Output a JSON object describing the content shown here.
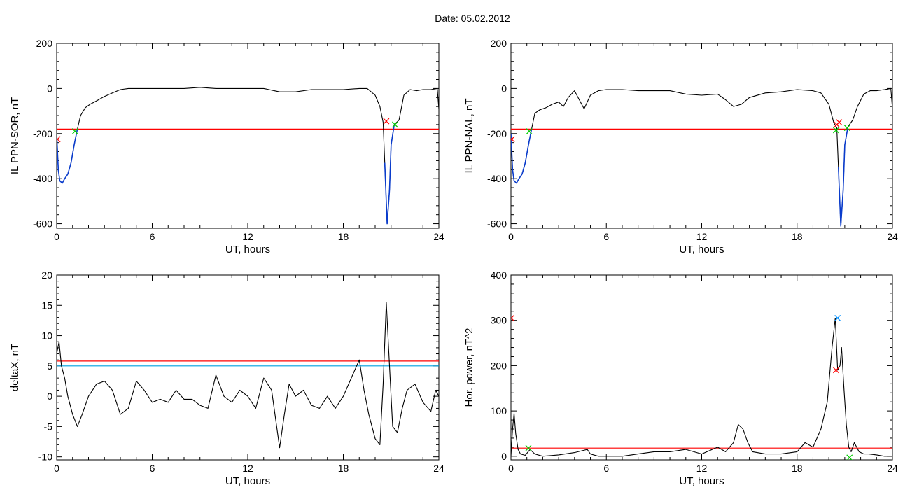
{
  "title": "Date:  05.02.2012",
  "colors": {
    "axis": "#000000",
    "trace": "#000000",
    "threshold_red": "#ff0000",
    "threshold_blue": "#00a0e0",
    "highlight": "#0a3ccc",
    "marker_red": "#ff0000",
    "marker_green": "#00cc00",
    "marker_blue": "#0090ff"
  },
  "chart_data": [
    {
      "type": "line",
      "title": "",
      "xlabel": "UT, hours",
      "ylabel": "IL PPN-SOR, nT",
      "xlim": [
        0,
        24
      ],
      "ylim": [
        -620,
        200
      ],
      "xticks": [
        0,
        6,
        12,
        18,
        24
      ],
      "yticks": [
        -600,
        -400,
        -200,
        0,
        200
      ],
      "grid": false,
      "legend": "none",
      "thresholds": [
        {
          "y": -180,
          "color": "#ff0000"
        }
      ],
      "series": [
        {
          "color": "#000000",
          "x": [
            0,
            0.1,
            0.2,
            0.35,
            0.5,
            0.7,
            0.9,
            1.1,
            1.3,
            1.5,
            1.8,
            2.1,
            2.5,
            3.0,
            3.5,
            4.0,
            4.5,
            5,
            6,
            7,
            8,
            9,
            10,
            11,
            12,
            13,
            14,
            15,
            16,
            17,
            18,
            19,
            19.5,
            20.0,
            20.3,
            20.5,
            20.6,
            20.75,
            20.9,
            21.0,
            21.2,
            21.5,
            21.8,
            22.2,
            22.6,
            23,
            23.5,
            23.9,
            24
          ],
          "y": [
            -200,
            -360,
            -410,
            -420,
            -400,
            -380,
            -330,
            -250,
            -180,
            -120,
            -85,
            -70,
            -55,
            -35,
            -20,
            -5,
            0,
            0,
            0,
            0,
            0,
            5,
            0,
            0,
            0,
            0,
            -15,
            -15,
            -5,
            -5,
            -5,
            0,
            0,
            -30,
            -80,
            -150,
            -330,
            -600,
            -450,
            -250,
            -160,
            -140,
            -30,
            -5,
            -10,
            -5,
            -5,
            0,
            -90
          ]
        },
        {
          "color": "#0a3ccc",
          "x": [
            0,
            0.1,
            0.2,
            0.35,
            0.5,
            0.7,
            0.9,
            1.1,
            1.3
          ],
          "y": [
            -200,
            -360,
            -410,
            -420,
            -400,
            -380,
            -330,
            -250,
            -180
          ]
        },
        {
          "color": "#0a3ccc",
          "x": [
            20.6,
            20.75,
            20.9,
            21.0,
            21.2
          ],
          "y": [
            -330,
            -600,
            -450,
            -250,
            -160
          ]
        }
      ],
      "markers": [
        {
          "x": 0.05,
          "y": -225,
          "color": "#ff0000"
        },
        {
          "x": 1.15,
          "y": -190,
          "color": "#00cc00"
        },
        {
          "x": 20.7,
          "y": -145,
          "color": "#ff0000"
        },
        {
          "x": 21.25,
          "y": -160,
          "color": "#00cc00"
        }
      ]
    },
    {
      "type": "line",
      "title": "",
      "xlabel": "UT, hours",
      "ylabel": "IL PPN-NAL, nT",
      "xlim": [
        0,
        24
      ],
      "ylim": [
        -620,
        200
      ],
      "xticks": [
        0,
        6,
        12,
        18,
        24
      ],
      "yticks": [
        -600,
        -400,
        -200,
        0,
        200
      ],
      "grid": false,
      "legend": "none",
      "thresholds": [
        {
          "y": -180,
          "color": "#ff0000"
        }
      ],
      "series": [
        {
          "color": "#000000",
          "x": [
            0,
            0.1,
            0.2,
            0.35,
            0.5,
            0.7,
            0.9,
            1.1,
            1.3,
            1.5,
            1.8,
            2.2,
            2.6,
            3.0,
            3.3,
            3.6,
            4.0,
            4.3,
            4.6,
            5.0,
            5.5,
            6,
            7,
            8,
            9,
            10,
            11,
            12,
            13,
            13.5,
            14,
            14.5,
            15,
            16,
            17,
            18,
            19,
            19.5,
            20.0,
            20.3,
            20.5,
            20.6,
            20.75,
            20.9,
            21.0,
            21.2,
            21.5,
            21.8,
            22.2,
            22.6,
            23,
            23.5,
            23.9,
            24
          ],
          "y": [
            -200,
            -360,
            -410,
            -420,
            -400,
            -380,
            -330,
            -250,
            -180,
            -110,
            -95,
            -85,
            -70,
            -60,
            -80,
            -40,
            -10,
            -50,
            -90,
            -30,
            -10,
            -5,
            -5,
            -10,
            -10,
            -10,
            -25,
            -30,
            -25,
            -50,
            -80,
            -70,
            -40,
            -20,
            -15,
            -5,
            -10,
            -20,
            -70,
            -150,
            -175,
            -350,
            -610,
            -450,
            -250,
            -170,
            -140,
            -80,
            -25,
            -10,
            -10,
            -5,
            0,
            -90
          ]
        },
        {
          "color": "#0a3ccc",
          "x": [
            0,
            0.1,
            0.2,
            0.35,
            0.5,
            0.7,
            0.9,
            1.1,
            1.3
          ],
          "y": [
            -200,
            -360,
            -410,
            -420,
            -400,
            -380,
            -330,
            -250,
            -180
          ]
        },
        {
          "color": "#0a3ccc",
          "x": [
            20.6,
            20.75,
            20.9,
            21.0,
            21.2
          ],
          "y": [
            -350,
            -610,
            -450,
            -250,
            -170
          ]
        }
      ],
      "markers": [
        {
          "x": 0.05,
          "y": -225,
          "color": "#ff0000"
        },
        {
          "x": 1.15,
          "y": -190,
          "color": "#00cc00"
        },
        {
          "x": 20.5,
          "y": -160,
          "color": "#ff0000"
        },
        {
          "x": 20.65,
          "y": -150,
          "color": "#ff0000"
        },
        {
          "x": 20.45,
          "y": -185,
          "color": "#00cc00"
        },
        {
          "x": 21.15,
          "y": -175,
          "color": "#00cc00"
        }
      ]
    },
    {
      "type": "line",
      "title": "",
      "xlabel": "UT, hours",
      "ylabel": "deltaX, nT",
      "xlim": [
        0,
        24
      ],
      "ylim": [
        -10.5,
        20
      ],
      "xticks": [
        0,
        6,
        12,
        18,
        24
      ],
      "yticks": [
        -10,
        -5,
        0,
        5,
        10,
        15,
        20
      ],
      "grid": false,
      "legend": "none",
      "thresholds": [
        {
          "y": 5.8,
          "color": "#ff0000"
        },
        {
          "y": 5.0,
          "color": "#00a0e0"
        }
      ],
      "series": [
        {
          "color": "#000000",
          "x": [
            0,
            0.15,
            0.3,
            0.5,
            0.7,
            1.0,
            1.3,
            1.6,
            2.0,
            2.5,
            3.0,
            3.5,
            4.0,
            4.5,
            5.0,
            5.5,
            6.0,
            6.5,
            7.0,
            7.5,
            8.0,
            8.5,
            9.0,
            9.5,
            10.0,
            10.5,
            11.0,
            11.5,
            12.0,
            12.5,
            13.0,
            13.5,
            14.0,
            14.3,
            14.6,
            15.0,
            15.5,
            16.0,
            16.5,
            17.0,
            17.5,
            18.0,
            18.5,
            19.0,
            19.3,
            19.6,
            20.0,
            20.3,
            20.5,
            20.7,
            20.9,
            21.1,
            21.4,
            21.7,
            22.0,
            22.5,
            23.0,
            23.5,
            23.8,
            24
          ],
          "y": [
            7,
            9,
            5,
            3,
            0,
            -3,
            -5,
            -3,
            0,
            2,
            2.5,
            1,
            -3,
            -2,
            2.5,
            1,
            -1,
            -0.5,
            -1,
            1,
            -0.5,
            -0.5,
            -1.5,
            -2,
            3.5,
            0,
            -1,
            1,
            0,
            -2,
            3,
            1,
            -8.5,
            -3,
            2,
            0,
            1,
            -1.5,
            -2,
            0,
            -2,
            0,
            3,
            6,
            1,
            -3,
            -7,
            -8,
            2,
            15.5,
            5,
            -5,
            -6,
            -2,
            1,
            2,
            -1,
            -2.5,
            1,
            0
          ]
        }
      ],
      "markers": []
    },
    {
      "type": "line",
      "title": "",
      "xlabel": "UT, hours",
      "ylabel": "Hor. power, nT^2",
      "xlim": [
        0,
        24
      ],
      "ylim": [
        -8,
        400
      ],
      "xticks": [
        0,
        6,
        12,
        18,
        24
      ],
      "yticks": [
        0,
        100,
        200,
        300,
        400
      ],
      "grid": false,
      "legend": "none",
      "thresholds": [
        {
          "y": 18,
          "color": "#ff0000"
        }
      ],
      "series": [
        {
          "color": "#000000",
          "x": [
            0,
            0.1,
            0.2,
            0.3,
            0.45,
            0.6,
            0.9,
            1.2,
            1.5,
            2.0,
            3.0,
            4.0,
            4.8,
            5.0,
            5.5,
            6.0,
            7.0,
            8.0,
            9.0,
            10.0,
            11.0,
            12.0,
            13.0,
            13.5,
            14.0,
            14.3,
            14.6,
            14.9,
            15.2,
            16.0,
            17.0,
            18.0,
            18.5,
            19.0,
            19.5,
            19.9,
            20.2,
            20.4,
            20.55,
            20.7,
            20.8,
            20.95,
            21.1,
            21.25,
            21.4,
            21.6,
            21.9,
            22.2,
            22.5,
            23.0,
            23.5,
            24
          ],
          "y": [
            0,
            60,
            95,
            50,
            15,
            5,
            2,
            15,
            5,
            0,
            3,
            8,
            15,
            5,
            0,
            0,
            0,
            5,
            10,
            10,
            15,
            5,
            20,
            10,
            30,
            70,
            60,
            30,
            10,
            5,
            5,
            10,
            30,
            20,
            60,
            120,
            240,
            305,
            190,
            200,
            240,
            150,
            70,
            20,
            10,
            30,
            10,
            5,
            5,
            3,
            0,
            0
          ]
        }
      ],
      "markers": [
        {
          "x": 20.45,
          "y": 190,
          "color": "#ff0000"
        },
        {
          "x": 20.55,
          "y": 305,
          "color": "#0090ff"
        },
        {
          "x": 1.1,
          "y": 18,
          "color": "#00cc00"
        },
        {
          "x": 21.3,
          "y": -3,
          "color": "#00cc00"
        },
        {
          "x": 0.02,
          "y": 305,
          "color": "#ff0000"
        }
      ]
    }
  ]
}
